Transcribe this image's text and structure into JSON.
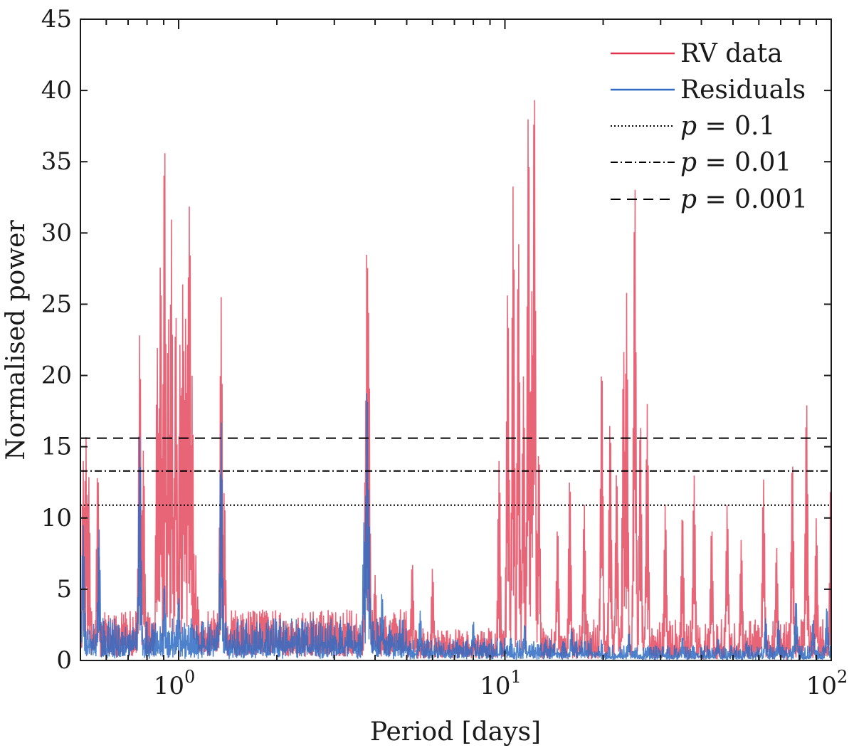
{
  "chart_data": {
    "type": "line",
    "x_scale": "log",
    "xlim": [
      0.5,
      100
    ],
    "ylim": [
      0,
      45
    ],
    "xlabel": "Period [days]",
    "ylabel": "Normalised power",
    "y_ticks": [
      0,
      5,
      10,
      15,
      20,
      25,
      30,
      35,
      40,
      45
    ],
    "x_ticks": [
      {
        "value": 1,
        "base": "10",
        "exp": "0"
      },
      {
        "value": 10,
        "base": "10",
        "exp": "1"
      },
      {
        "value": 100,
        "base": "10",
        "exp": "2"
      }
    ],
    "grid": false,
    "legend_position": "top-right",
    "series": [
      {
        "name": "RV data",
        "color": "#e0324b",
        "peaks": [
          [
            0.51,
            14.0
          ],
          [
            0.52,
            15.7
          ],
          [
            0.53,
            13.0
          ],
          [
            0.565,
            13.5
          ],
          [
            0.76,
            23.1
          ],
          [
            0.78,
            14.8
          ],
          [
            0.86,
            22.0
          ],
          [
            0.88,
            28.5
          ],
          [
            0.905,
            37.2
          ],
          [
            0.93,
            24.5
          ],
          [
            0.95,
            31.0
          ],
          [
            0.98,
            25.0
          ],
          [
            1.01,
            22.3
          ],
          [
            1.03,
            26.5
          ],
          [
            1.05,
            24.0
          ],
          [
            1.07,
            27.0
          ],
          [
            1.08,
            32.5
          ],
          [
            1.1,
            20.0
          ],
          [
            1.35,
            25.5
          ],
          [
            1.38,
            12.0
          ],
          [
            3.75,
            18.5
          ],
          [
            3.78,
            29.9
          ],
          [
            3.82,
            24.4
          ],
          [
            4.0,
            6.0
          ],
          [
            5.2,
            7.0
          ],
          [
            6.0,
            6.5
          ],
          [
            9.6,
            14.1
          ],
          [
            10.2,
            26.3
          ],
          [
            10.6,
            33.4
          ],
          [
            11.0,
            29.8
          ],
          [
            11.4,
            20.0
          ],
          [
            11.8,
            39.0
          ],
          [
            12.1,
            26.0
          ],
          [
            12.3,
            41.1
          ],
          [
            12.7,
            15.0
          ],
          [
            14.5,
            9.5
          ],
          [
            15.8,
            13.0
          ],
          [
            17.5,
            11.0
          ],
          [
            19.8,
            21.1
          ],
          [
            21.0,
            17.0
          ],
          [
            22.0,
            13.5
          ],
          [
            23.1,
            22.0
          ],
          [
            23.6,
            25.8
          ],
          [
            25.0,
            33.9
          ],
          [
            26.0,
            17.0
          ],
          [
            27.3,
            18.0
          ],
          [
            31.0,
            11.0
          ],
          [
            35.0,
            10.5
          ],
          [
            38.0,
            13.0
          ],
          [
            43.0,
            9.5
          ],
          [
            48.0,
            11.0
          ],
          [
            53.0,
            8.5
          ],
          [
            62.0,
            12.8
          ],
          [
            68.0,
            8.0
          ],
          [
            76.0,
            14.3
          ],
          [
            84.0,
            18.4
          ],
          [
            90.0,
            10.0
          ],
          [
            100.0,
            15.3
          ]
        ]
      },
      {
        "name": "Residuals",
        "color": "#2f6bc2",
        "peaks": [
          [
            0.51,
            9.5
          ],
          [
            0.57,
            9.3
          ],
          [
            0.76,
            15.9
          ],
          [
            0.905,
            5.5
          ],
          [
            1.0,
            4.5
          ],
          [
            1.35,
            16.7
          ],
          [
            3.7,
            9.8
          ],
          [
            3.78,
            19.7
          ],
          [
            3.82,
            12.0
          ],
          [
            4.2,
            4.8
          ],
          [
            5.5,
            3.5
          ],
          [
            8.0,
            2.8
          ],
          [
            11.5,
            2.6
          ],
          [
            16.0,
            2.3
          ],
          [
            24.0,
            2.0
          ],
          [
            35.0,
            1.7
          ],
          [
            45.0,
            1.6
          ],
          [
            55.0,
            1.4
          ],
          [
            63.0,
            3.0
          ],
          [
            69.0,
            2.8
          ],
          [
            78.0,
            4.3
          ],
          [
            88.0,
            2.9
          ],
          [
            97.0,
            3.8
          ]
        ]
      }
    ],
    "thresholds": [
      {
        "name": "p = 0.1",
        "y": 10.9,
        "style": "dotted"
      },
      {
        "name": "p = 0.01",
        "y": 13.3,
        "style": "dashdot"
      },
      {
        "name": "p = 0.001",
        "y": 15.6,
        "style": "dashed"
      }
    ],
    "legend": [
      {
        "text": "RV data",
        "style": "solid",
        "color": "#e0324b",
        "italic_p": false
      },
      {
        "text": "Residuals",
        "style": "solid",
        "color": "#2f6bc2",
        "italic_p": false
      },
      {
        "text": "= 0.1",
        "style": "dotted",
        "color": "#000000",
        "italic_p": true
      },
      {
        "text": "= 0.01",
        "style": "dashdot",
        "color": "#000000",
        "italic_p": true
      },
      {
        "text": "= 0.001",
        "style": "dashed",
        "color": "#000000",
        "italic_p": true
      }
    ],
    "p_symbol": "p"
  }
}
